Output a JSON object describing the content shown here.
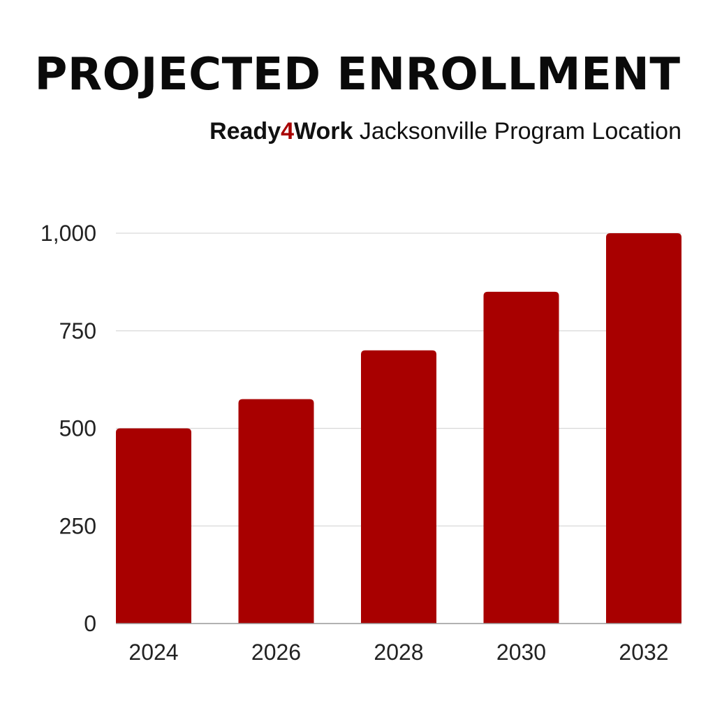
{
  "colors": {
    "bar": "#a80000",
    "accent": "#a80000",
    "grid": "#d9d9d9",
    "axis": "#999999",
    "text": "#111111"
  },
  "header": {
    "title": "PROJECTED ENROLLMENT",
    "subtitle_brand_part1": "Ready",
    "subtitle_brand_accent": "4",
    "subtitle_brand_part2": "Work",
    "subtitle_rest": " Jacksonville Program Location"
  },
  "chart_data": {
    "type": "bar",
    "title": "PROJECTED ENROLLMENT",
    "subtitle": "Ready4Work Jacksonville Program Location",
    "categories": [
      "2024",
      "2026",
      "2028",
      "2030",
      "2032"
    ],
    "values": [
      500,
      575,
      700,
      850,
      1000
    ],
    "xlabel": "",
    "ylabel": "",
    "ylim": [
      0,
      1000
    ],
    "yticks": [
      0,
      250,
      500,
      750,
      1000
    ],
    "ytick_labels": [
      "0",
      "250",
      "500",
      "750",
      "1,000"
    ],
    "grid": true,
    "legend": "none"
  }
}
